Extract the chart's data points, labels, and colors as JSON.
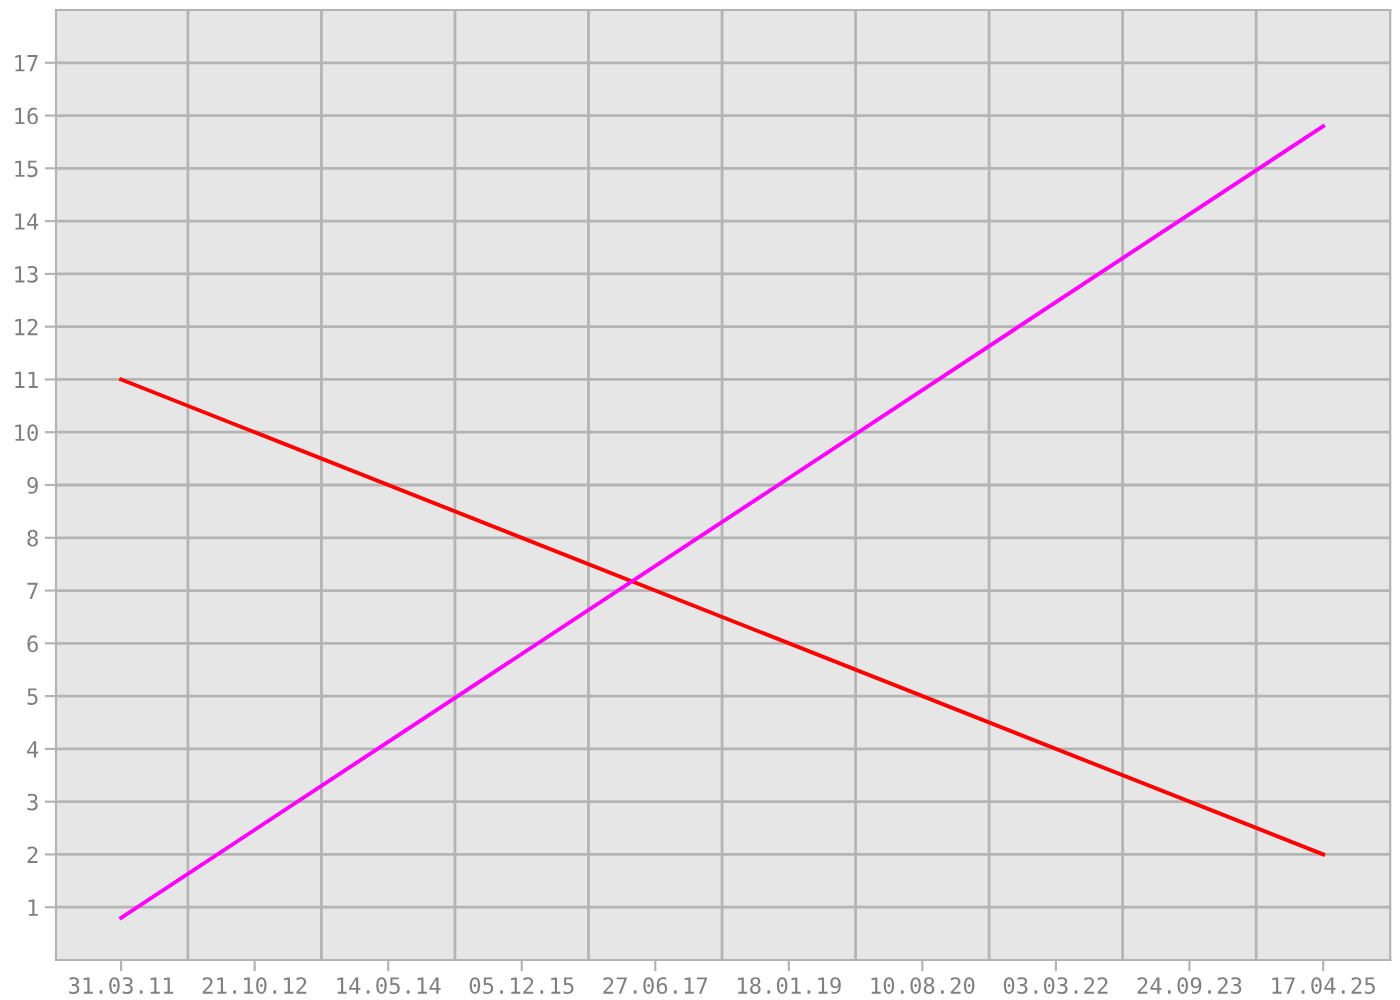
{
  "chart_data": {
    "type": "line",
    "x": [
      "2011-03-31",
      "2025-04-17"
    ],
    "series": [
      {
        "color": "#ff0000",
        "values": [
          11,
          2
        ]
      },
      {
        "color": "#ff00ff",
        "values": [
          0.8,
          15.8
        ]
      }
    ],
    "xlim": [
      "2010-06-26",
      "2026-01-28"
    ],
    "xticks": [
      {
        "value": "2011-03-31",
        "label": "31.03.11"
      },
      {
        "value": "2012-01-10",
        "label": null
      },
      {
        "value": "2012-10-21",
        "label": "21.10.12"
      },
      {
        "value": "2013-08-02",
        "label": null
      },
      {
        "value": "2014-05-14",
        "label": "14.05.14"
      },
      {
        "value": "2015-02-23",
        "label": null
      },
      {
        "value": "2015-12-05",
        "label": "05.12.15"
      },
      {
        "value": "2016-09-15",
        "label": null
      },
      {
        "value": "2017-06-27",
        "label": "27.06.17"
      },
      {
        "value": "2018-04-08",
        "label": null
      },
      {
        "value": "2019-01-18",
        "label": "18.01.19"
      },
      {
        "value": "2019-10-30",
        "label": null
      },
      {
        "value": "2020-08-10",
        "label": "10.08.20"
      },
      {
        "value": "2021-05-22",
        "label": null
      },
      {
        "value": "2022-03-03",
        "label": "03.03.22"
      },
      {
        "value": "2022-12-13",
        "label": null
      },
      {
        "value": "2023-09-24",
        "label": "24.09.23"
      },
      {
        "value": "2024-07-05",
        "label": null
      },
      {
        "value": "2025-04-17",
        "label": "17.04.25"
      }
    ],
    "ylim": [
      0,
      18
    ],
    "yticks": [
      1,
      2,
      3,
      4,
      5,
      6,
      7,
      8,
      9,
      10,
      11,
      12,
      13,
      14,
      15,
      16,
      17
    ],
    "grid": true,
    "marker": "none",
    "line_style": "solid"
  }
}
